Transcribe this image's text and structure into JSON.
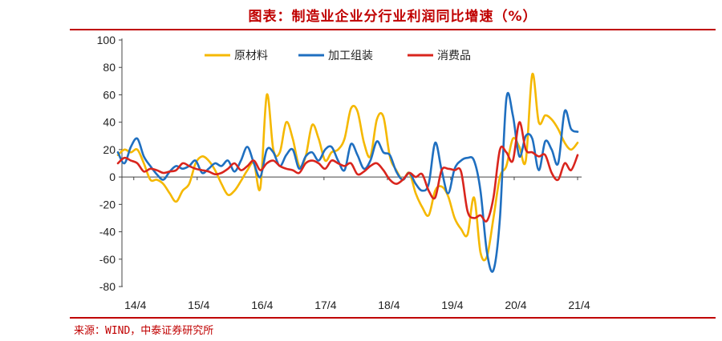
{
  "title": "图表：制造业企业分行业利润同比增速（%）",
  "source": "来源：WIND，中泰证券研究所",
  "chart_data": {
    "type": "line",
    "title": "图表：制造业企业分行业利润同比增速（%）",
    "ylim": [
      -80,
      100
    ],
    "yticks": [
      -80,
      -60,
      -40,
      -20,
      0,
      20,
      40,
      60,
      80,
      100
    ],
    "xticks": [
      "14/4",
      "15/4",
      "16/4",
      "17/4",
      "18/4",
      "19/4",
      "20/4",
      "21/4"
    ],
    "x_start": "14/1",
    "x_end": "21/4",
    "grid": false,
    "legend": "top-center",
    "series": [
      {
        "name": "原材料",
        "color": "#f5b800",
        "values": [
          16,
          20,
          18,
          20,
          10,
          -2,
          -2,
          -5,
          -12,
          -18,
          -10,
          -5,
          10,
          15,
          12,
          5,
          -5,
          -13,
          -10,
          -3,
          5,
          10,
          -8,
          60,
          20,
          18,
          40,
          28,
          8,
          15,
          38,
          28,
          12,
          18,
          20,
          28,
          50,
          48,
          25,
          15,
          42,
          44,
          15,
          5,
          -2,
          3,
          -12,
          -22,
          -28,
          -10,
          -7,
          -14,
          -30,
          -38,
          -42,
          -15,
          -55,
          -58,
          -30,
          0,
          8,
          28,
          22,
          12,
          75,
          40,
          45,
          42,
          35,
          25,
          20,
          25
        ]
      },
      {
        "name": "加工组装",
        "color": "#1f6fc0",
        "values": [
          18,
          10,
          22,
          28,
          15,
          8,
          2,
          -2,
          4,
          8,
          6,
          8,
          12,
          3,
          6,
          10,
          8,
          12,
          4,
          12,
          22,
          10,
          0,
          20,
          18,
          8,
          16,
          20,
          6,
          15,
          18,
          12,
          20,
          22,
          12,
          5,
          24,
          16,
          6,
          12,
          26,
          18,
          16,
          4,
          -2,
          3,
          -5,
          -10,
          -5,
          25,
          5,
          -12,
          6,
          12,
          14,
          12,
          -10,
          -55,
          -68,
          -30,
          57,
          45,
          15,
          30,
          28,
          5,
          26,
          20,
          10,
          48,
          35,
          33
        ]
      },
      {
        "name": "消费品",
        "color": "#d9251d",
        "values": [
          10,
          14,
          12,
          10,
          4,
          6,
          5,
          3,
          4,
          5,
          10,
          8,
          6,
          5,
          4,
          2,
          3,
          6,
          10,
          5,
          8,
          12,
          5,
          10,
          12,
          8,
          6,
          5,
          3,
          10,
          12,
          10,
          6,
          12,
          10,
          8,
          10,
          2,
          4,
          8,
          10,
          5,
          -2,
          -5,
          -2,
          3,
          0,
          2,
          -10,
          -15,
          5,
          6,
          5,
          4,
          -25,
          -30,
          -28,
          -32,
          -15,
          20,
          18,
          12,
          40,
          20,
          18,
          15,
          16,
          3,
          -2,
          10,
          5,
          16
        ]
      }
    ]
  }
}
